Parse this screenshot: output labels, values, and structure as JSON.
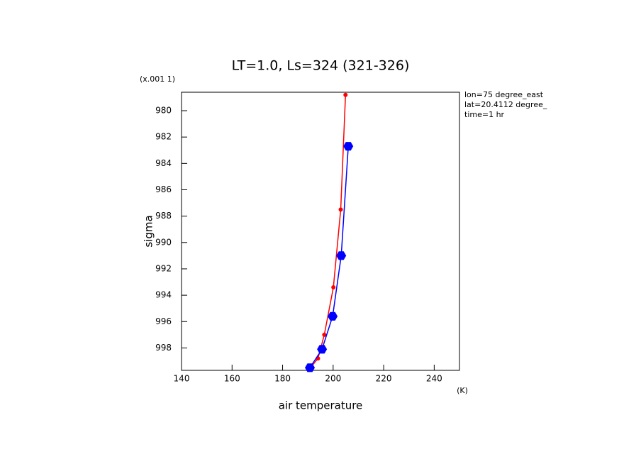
{
  "chart_data": {
    "type": "line",
    "title": "LT=1.0, Ls=324 (321-326)",
    "xlabel": "air temperature",
    "ylabel": "sigma",
    "x_unit": "(K)",
    "y_unit": "(x.001 1)",
    "annotations": [
      "lon=75 degree_east",
      "lat=20.4112 degree_",
      "time=1 hr"
    ],
    "xlim": [
      140,
      250
    ],
    "xticks": [
      140,
      160,
      180,
      200,
      220,
      240
    ],
    "ylim": [
      999.7,
      978.6
    ],
    "yticks": [
      980,
      982,
      984,
      986,
      988,
      990,
      992,
      994,
      996,
      998
    ],
    "series": [
      {
        "color": "#ff0000",
        "marker": "dot",
        "x": [
          204.9,
          203,
          200.1,
          196.5,
          194,
          191
        ],
        "values": [
          978.8,
          987.5,
          993.4,
          997.0,
          998.8,
          999.5
        ]
      },
      {
        "color": "#0000ff",
        "marker": "hexagon",
        "x": [
          206.0,
          203.2,
          199.8,
          195.6,
          190.8
        ],
        "values": [
          982.7,
          991.0,
          995.6,
          998.1,
          999.5
        ]
      }
    ]
  }
}
